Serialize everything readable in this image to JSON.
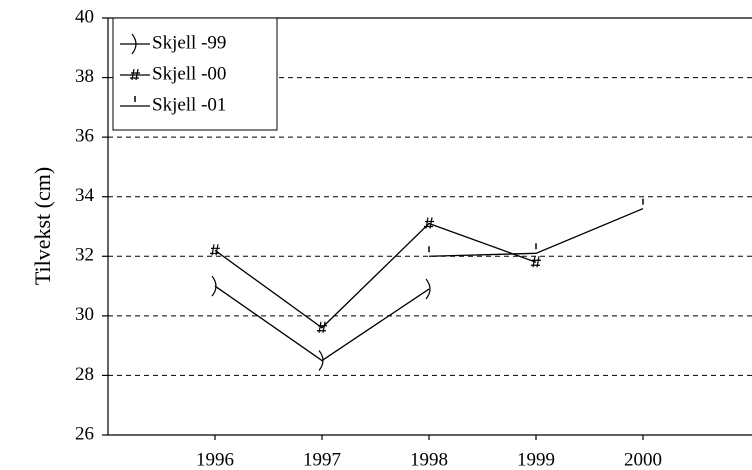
{
  "chart_data": {
    "type": "line",
    "y_label": "Tilvekst (cm)",
    "x": [
      1996,
      1997,
      1998,
      1999,
      2000
    ],
    "xlim": [
      1995,
      2001
    ],
    "xticks": [
      1996,
      1997,
      1998,
      1999,
      2000
    ],
    "ylim": [
      26,
      40
    ],
    "yticks": [
      26,
      28,
      30,
      32,
      34,
      36,
      38,
      40
    ],
    "grid": true,
    "legend": "upper left",
    "series": [
      {
        "name": "Skjell -99",
        "color": "#000000",
        "values": [
          31.0,
          28.5,
          30.9,
          null,
          null
        ]
      },
      {
        "name": "Skjell -00",
        "color": "#000000",
        "values": [
          32.2,
          29.6,
          33.1,
          31.8,
          null
        ]
      },
      {
        "name": "Skjell -01",
        "color": "#000000",
        "values": [
          null,
          null,
          32.0,
          32.1,
          33.6
        ]
      }
    ]
  }
}
